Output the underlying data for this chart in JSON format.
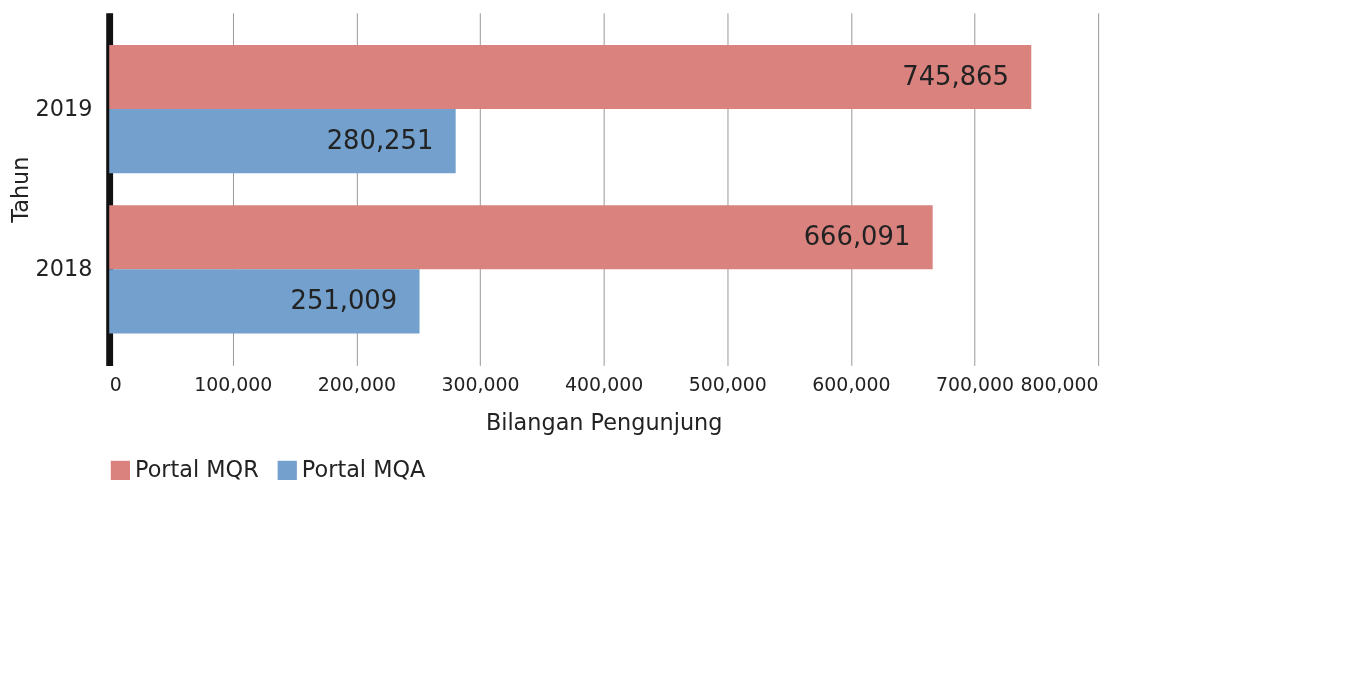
{
  "chart_data": {
    "type": "bar",
    "orientation": "horizontal",
    "xlabel": "Bilangan Pengunjung",
    "ylabel": "Tahun",
    "categories": [
      "2019",
      "2018"
    ],
    "series": [
      {
        "name": "Portal MQR",
        "color": "#d9827e",
        "values": [
          745865,
          666091
        ],
        "value_labels": [
          "745,865",
          "666,091"
        ]
      },
      {
        "name": "Portal MQA",
        "color": "#73a0cd",
        "values": [
          280251,
          251009
        ],
        "value_labels": [
          "280,251",
          "251,009"
        ]
      }
    ],
    "xlim": [
      0,
      800000
    ],
    "xticks": [
      0,
      {
        "value": 100000,
        "label": "100,000"
      },
      {
        "value": 200000,
        "label": "200,000"
      },
      {
        "value": 300000,
        "label": "300,000"
      },
      {
        "value": 400000,
        "label": "400,000"
      },
      {
        "value": 500000,
        "label": "500,000"
      },
      {
        "value": 600000,
        "label": "600,000"
      },
      {
        "value": 700000,
        "label": "700,000"
      },
      {
        "value": 800000,
        "label": "800,000"
      }
    ],
    "grid": "x",
    "legend": "bottom"
  }
}
